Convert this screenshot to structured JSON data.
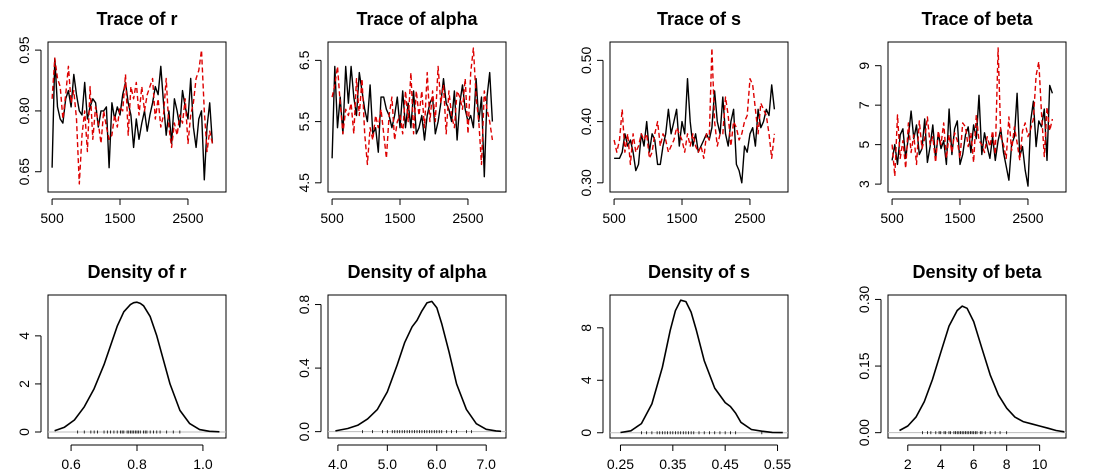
{
  "chart_data": [
    {
      "type": "line",
      "panel": "trace",
      "title": "Trace of r",
      "xlim": [
        440,
        3060
      ],
      "ylim": [
        0.6,
        0.97
      ],
      "xticks": [
        500,
        1500,
        2500
      ],
      "xtick_labels": [
        "500",
        "1500",
        "2500"
      ],
      "yticks": [
        0.65,
        0.8,
        0.95
      ],
      "ytick_labels": [
        "0.65",
        "0.80",
        "0.95"
      ],
      "x_start": 500,
      "x_step": 40,
      "series": [
        {
          "color": "#000000",
          "dash": "solid",
          "values": [
            0.66,
            0.93,
            0.81,
            0.78,
            0.77,
            0.83,
            0.85,
            0.81,
            0.89,
            0.84,
            0.8,
            0.79,
            0.87,
            0.78,
            0.81,
            0.83,
            0.82,
            0.76,
            0.8,
            0.8,
            0.81,
            0.66,
            0.82,
            0.78,
            0.81,
            0.79,
            0.84,
            0.87,
            0.82,
            0.79,
            0.71,
            0.78,
            0.73,
            0.77,
            0.8,
            0.75,
            0.79,
            0.82,
            0.86,
            0.84,
            0.91,
            0.82,
            0.74,
            0.8,
            0.72,
            0.83,
            0.8,
            0.76,
            0.85,
            0.81,
            0.78,
            0.88,
            0.76,
            0.71,
            0.78,
            0.8,
            0.63,
            0.76,
            0.82,
            0.72
          ]
        },
        {
          "color": "#dd0000",
          "dash": "dashed",
          "values": [
            0.83,
            0.93,
            0.88,
            0.86,
            0.78,
            0.84,
            0.91,
            0.82,
            0.85,
            0.78,
            0.62,
            0.74,
            0.8,
            0.7,
            0.86,
            0.73,
            0.81,
            0.77,
            0.72,
            0.8,
            0.76,
            0.73,
            0.74,
            0.79,
            0.76,
            0.81,
            0.8,
            0.89,
            0.74,
            0.86,
            0.83,
            0.87,
            0.79,
            0.86,
            0.8,
            0.84,
            0.86,
            0.88,
            0.78,
            0.83,
            0.76,
            0.79,
            0.88,
            0.76,
            0.71,
            0.77,
            0.74,
            0.79,
            0.77,
            0.83,
            0.72,
            0.79,
            0.82,
            0.88,
            0.9,
            0.95,
            0.8,
            0.7,
            0.75,
            0.72
          ]
        }
      ]
    },
    {
      "type": "line",
      "panel": "trace",
      "title": "Trace of alpha",
      "xlim": [
        440,
        3060
      ],
      "ylim": [
        4.35,
        6.8
      ],
      "xticks": [
        500,
        1500,
        2500
      ],
      "xtick_labels": [
        "500",
        "1500",
        "2500"
      ],
      "yticks": [
        4.5,
        5.5,
        6.5
      ],
      "ytick_labels": [
        "4.5",
        "5.5",
        "6.5"
      ],
      "x_start": 500,
      "x_step": 40,
      "series": [
        {
          "color": "#000000",
          "dash": "solid",
          "values": [
            4.9,
            6.4,
            5.4,
            5.9,
            5.3,
            6.4,
            5.8,
            6.4,
            5.9,
            5.6,
            6.3,
            6.0,
            5.7,
            5.5,
            6.1,
            5.3,
            5.4,
            5.0,
            5.9,
            5.9,
            5.7,
            5.6,
            5.4,
            5.6,
            5.9,
            5.4,
            6.0,
            5.4,
            5.8,
            5.4,
            6.0,
            5.3,
            5.4,
            5.6,
            5.2,
            5.6,
            5.8,
            5.9,
            5.3,
            5.5,
            5.8,
            6.2,
            5.8,
            5.7,
            5.5,
            6.0,
            5.2,
            5.8,
            6.1,
            5.7,
            5.5,
            5.6,
            5.4,
            6.2,
            5.5,
            5.9,
            4.6,
            5.9,
            6.3,
            5.5
          ]
        },
        {
          "color": "#dd0000",
          "dash": "dashed",
          "values": [
            5.9,
            6.1,
            6.4,
            5.8,
            5.3,
            5.7,
            5.6,
            5.8,
            5.3,
            6.2,
            5.6,
            6.2,
            5.3,
            4.8,
            5.4,
            5.2,
            5.6,
            5.4,
            5.7,
            5.3,
            4.9,
            5.6,
            5.9,
            5.2,
            5.5,
            5.6,
            5.3,
            6.0,
            5.5,
            6.3,
            5.3,
            6.0,
            5.6,
            6.0,
            5.4,
            6.3,
            5.5,
            6.0,
            5.5,
            6.4,
            5.8,
            6.1,
            5.3,
            6.0,
            5.6,
            5.4,
            6.0,
            5.9,
            5.7,
            6.2,
            5.3,
            6.3,
            6.7,
            5.9,
            5.5,
            4.8,
            6.0,
            5.7,
            5.5,
            5.2
          ]
        }
      ]
    },
    {
      "type": "line",
      "panel": "trace",
      "title": "Trace of s",
      "xlim": [
        440,
        3060
      ],
      "ylim": [
        0.285,
        0.53
      ],
      "xticks": [
        500,
        1500,
        2500
      ],
      "xtick_labels": [
        "500",
        "1500",
        "2500"
      ],
      "yticks": [
        0.3,
        0.4,
        0.5
      ],
      "ytick_labels": [
        "0.30",
        "0.40",
        "0.50"
      ],
      "x_start": 500,
      "x_step": 40,
      "series": [
        {
          "color": "#000000",
          "dash": "solid",
          "values": [
            0.34,
            0.34,
            0.34,
            0.35,
            0.38,
            0.36,
            0.37,
            0.35,
            0.32,
            0.33,
            0.38,
            0.36,
            0.4,
            0.35,
            0.38,
            0.37,
            0.33,
            0.33,
            0.36,
            0.38,
            0.42,
            0.38,
            0.4,
            0.42,
            0.36,
            0.4,
            0.38,
            0.47,
            0.4,
            0.36,
            0.38,
            0.35,
            0.36,
            0.37,
            0.38,
            0.37,
            0.39,
            0.45,
            0.4,
            0.38,
            0.44,
            0.38,
            0.36,
            0.4,
            0.42,
            0.33,
            0.32,
            0.3,
            0.36,
            0.35,
            0.38,
            0.39,
            0.36,
            0.42,
            0.39,
            0.4,
            0.42,
            0.41,
            0.46,
            0.42
          ]
        },
        {
          "color": "#dd0000",
          "dash": "dashed",
          "values": [
            0.37,
            0.35,
            0.37,
            0.42,
            0.35,
            0.38,
            0.33,
            0.38,
            0.35,
            0.36,
            0.38,
            0.37,
            0.38,
            0.34,
            0.35,
            0.38,
            0.4,
            0.36,
            0.38,
            0.37,
            0.35,
            0.36,
            0.37,
            0.39,
            0.38,
            0.37,
            0.35,
            0.38,
            0.36,
            0.38,
            0.36,
            0.35,
            0.36,
            0.34,
            0.38,
            0.37,
            0.52,
            0.4,
            0.36,
            0.38,
            0.38,
            0.44,
            0.41,
            0.36,
            0.4,
            0.39,
            0.37,
            0.38,
            0.4,
            0.41,
            0.47,
            0.46,
            0.42,
            0.38,
            0.43,
            0.42,
            0.41,
            0.38,
            0.34,
            0.38
          ]
        }
      ]
    },
    {
      "type": "line",
      "panel": "trace",
      "title": "Trace of beta",
      "xlim": [
        440,
        3060
      ],
      "ylim": [
        2.6,
        10.2
      ],
      "xticks": [
        500,
        1500,
        2500
      ],
      "xtick_labels": [
        "500",
        "1500",
        "2500"
      ],
      "yticks": [
        3,
        5,
        7,
        9
      ],
      "ytick_labels": [
        "3",
        "5",
        "7",
        "9"
      ],
      "x_start": 500,
      "x_step": 40,
      "series": [
        {
          "color": "#000000",
          "dash": "solid",
          "values": [
            4.2,
            5.0,
            4.0,
            5.5,
            5.8,
            4.3,
            5.4,
            6.7,
            5.3,
            6.0,
            4.5,
            4.8,
            6.3,
            4.1,
            4.9,
            6.0,
            4.3,
            5.6,
            4.8,
            5.2,
            4.0,
            6.8,
            4.5,
            5.8,
            6.2,
            4.0,
            4.5,
            5.5,
            5.9,
            4.6,
            6.0,
            5.3,
            7.5,
            4.5,
            5.6,
            4.9,
            4.3,
            5.4,
            4.2,
            5.2,
            5.8,
            4.6,
            3.9,
            3.2,
            5.0,
            5.4,
            7.6,
            4.4,
            4.9,
            3.7,
            2.9,
            6.2,
            7.2,
            4.9,
            6.2,
            5.9,
            6.8,
            4.2,
            8.0,
            7.6
          ]
        },
        {
          "color": "#dd0000",
          "dash": "dashed",
          "values": [
            5.0,
            3.4,
            6.5,
            4.3,
            5.2,
            3.8,
            6.1,
            4.6,
            5.5,
            4.0,
            6.2,
            4.8,
            5.3,
            6.4,
            5.0,
            5.4,
            4.1,
            5.7,
            5.0,
            6.1,
            4.3,
            5.5,
            4.6,
            5.6,
            5.2,
            4.3,
            6.1,
            5.9,
            4.9,
            5.6,
            4.1,
            6.5,
            5.2,
            5.0,
            4.6,
            5.4,
            4.9,
            5.7,
            4.5,
            9.9,
            5.4,
            5.0,
            4.3,
            6.4,
            4.7,
            5.9,
            5.1,
            4.2,
            5.7,
            6.1,
            5.4,
            5.8,
            6.3,
            8.5,
            9.2,
            6.6,
            4.4,
            6.9,
            5.7,
            6.3
          ]
        }
      ]
    },
    {
      "type": "line",
      "panel": "density",
      "title": "Density of r",
      "xlim": [
        0.53,
        1.07
      ],
      "ylim": [
        -0.25,
        5.7
      ],
      "xticks": [
        0.6,
        0.8,
        1.0
      ],
      "xtick_labels": [
        "0.6",
        "0.8",
        "1.0"
      ],
      "yticks": [
        0,
        2,
        4
      ],
      "ytick_labels": [
        "0",
        "2",
        "4"
      ],
      "curve": {
        "x": [
          0.55,
          0.58,
          0.61,
          0.64,
          0.67,
          0.7,
          0.72,
          0.74,
          0.76,
          0.78,
          0.79,
          0.8,
          0.81,
          0.82,
          0.84,
          0.86,
          0.88,
          0.9,
          0.93,
          0.96,
          0.99,
          1.02,
          1.05
        ],
        "y": [
          0.05,
          0.2,
          0.5,
          1.05,
          1.8,
          2.8,
          3.6,
          4.4,
          5.0,
          5.3,
          5.38,
          5.4,
          5.35,
          5.25,
          4.8,
          4.0,
          3.0,
          2.0,
          0.9,
          0.35,
          0.1,
          0.03,
          0.01
        ]
      },
      "rug": [
        0.62,
        0.64,
        0.66,
        0.67,
        0.68,
        0.7,
        0.71,
        0.72,
        0.73,
        0.74,
        0.75,
        0.755,
        0.76,
        0.77,
        0.775,
        0.78,
        0.785,
        0.79,
        0.795,
        0.8,
        0.805,
        0.81,
        0.82,
        0.825,
        0.83,
        0.84,
        0.85,
        0.86,
        0.87,
        0.89,
        0.91,
        0.93
      ]
    },
    {
      "type": "line",
      "panel": "density",
      "title": "Density of alpha",
      "xlim": [
        3.8,
        7.4
      ],
      "ylim": [
        -0.04,
        0.86
      ],
      "xticks": [
        4.0,
        5.0,
        6.0,
        7.0
      ],
      "xtick_labels": [
        "4.0",
        "5.0",
        "6.0",
        "7.0"
      ],
      "yticks": [
        0.0,
        0.4,
        0.8
      ],
      "ytick_labels": [
        "0.0",
        "0.4",
        "0.8"
      ],
      "curve": {
        "x": [
          3.95,
          4.2,
          4.4,
          4.6,
          4.8,
          5.0,
          5.2,
          5.35,
          5.5,
          5.6,
          5.7,
          5.8,
          5.9,
          6.0,
          6.1,
          6.25,
          6.4,
          6.6,
          6.8,
          7.0,
          7.2,
          7.3
        ],
        "y": [
          0.005,
          0.02,
          0.04,
          0.08,
          0.14,
          0.25,
          0.42,
          0.56,
          0.66,
          0.7,
          0.76,
          0.81,
          0.82,
          0.78,
          0.68,
          0.5,
          0.3,
          0.14,
          0.05,
          0.015,
          0.005,
          0.002
        ]
      },
      "rug": [
        4.5,
        4.7,
        4.9,
        5.0,
        5.1,
        5.15,
        5.2,
        5.25,
        5.3,
        5.35,
        5.4,
        5.45,
        5.5,
        5.55,
        5.6,
        5.65,
        5.7,
        5.75,
        5.8,
        5.85,
        5.9,
        5.95,
        6.0,
        6.05,
        6.1,
        6.2,
        6.3,
        6.4,
        6.6,
        6.7
      ]
    },
    {
      "type": "line",
      "panel": "density",
      "title": "Density of s",
      "xlim": [
        0.23,
        0.57
      ],
      "ylim": [
        -0.4,
        10.5
      ],
      "xticks": [
        0.25,
        0.35,
        0.45,
        0.55
      ],
      "xtick_labels": [
        "0.25",
        "0.35",
        "0.45",
        "0.55"
      ],
      "yticks": [
        0,
        4,
        8
      ],
      "ytick_labels": [
        "0",
        "4",
        "8"
      ],
      "curve": {
        "x": [
          0.25,
          0.27,
          0.29,
          0.31,
          0.33,
          0.345,
          0.355,
          0.365,
          0.375,
          0.385,
          0.395,
          0.41,
          0.43,
          0.45,
          0.46,
          0.47,
          0.48,
          0.5,
          0.52,
          0.54,
          0.56
        ],
        "y": [
          0.02,
          0.15,
          0.7,
          2.2,
          5.0,
          7.8,
          9.3,
          10.1,
          10.0,
          9.2,
          7.8,
          5.5,
          3.4,
          2.3,
          2.0,
          1.5,
          0.8,
          0.25,
          0.12,
          0.03,
          0.01
        ]
      },
      "rug": [
        0.29,
        0.3,
        0.31,
        0.32,
        0.325,
        0.33,
        0.335,
        0.34,
        0.345,
        0.35,
        0.355,
        0.36,
        0.365,
        0.37,
        0.375,
        0.38,
        0.385,
        0.39,
        0.4,
        0.41,
        0.42,
        0.43,
        0.44,
        0.45,
        0.46,
        0.47,
        0.52
      ]
    },
    {
      "type": "line",
      "panel": "density",
      "title": "Density of beta",
      "xlim": [
        0.8,
        11.6
      ],
      "ylim": [
        -0.012,
        0.31
      ],
      "xticks": [
        2,
        4,
        6,
        8,
        10
      ],
      "xtick_labels": [
        "2",
        "4",
        "6",
        "8",
        "10"
      ],
      "yticks": [
        0.0,
        0.15,
        0.3
      ],
      "ytick_labels": [
        "0.00",
        "0.15",
        "0.30"
      ],
      "curve": {
        "x": [
          1.5,
          2.0,
          2.5,
          3.0,
          3.5,
          4.0,
          4.5,
          5.0,
          5.3,
          5.6,
          6.0,
          6.5,
          7.0,
          7.5,
          8.0,
          8.5,
          9.0,
          9.5,
          10.0,
          10.5,
          11.0,
          11.5
        ],
        "y": [
          0.005,
          0.015,
          0.035,
          0.07,
          0.12,
          0.18,
          0.24,
          0.275,
          0.285,
          0.28,
          0.25,
          0.19,
          0.13,
          0.085,
          0.055,
          0.035,
          0.025,
          0.02,
          0.015,
          0.01,
          0.005,
          0.002
        ]
      },
      "rug": [
        2.9,
        3.2,
        3.4,
        3.7,
        3.9,
        4.0,
        4.2,
        4.3,
        4.5,
        4.6,
        4.8,
        4.9,
        5.0,
        5.1,
        5.2,
        5.3,
        5.4,
        5.5,
        5.6,
        5.7,
        5.8,
        5.9,
        6.0,
        6.1,
        6.2,
        6.4,
        6.5,
        6.7,
        7.0,
        7.3,
        7.6,
        8.0
      ]
    }
  ]
}
